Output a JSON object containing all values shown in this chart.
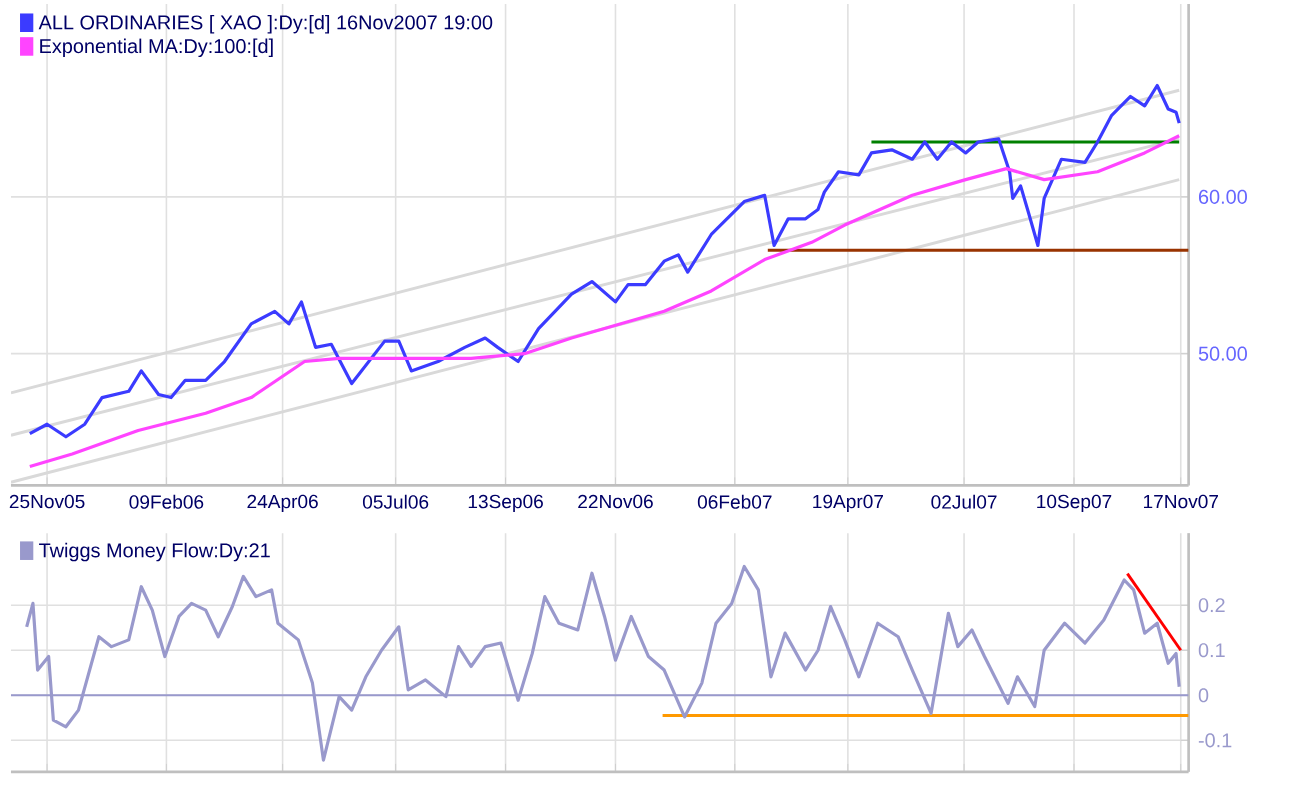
{
  "chart_data": [
    {
      "type": "line",
      "legend": "top left",
      "grid": true,
      "xlim": [
        "2005-11-02",
        "2007-11-22"
      ],
      "ylim": [
        41.6,
        72.3
      ],
      "xticks": [
        {
          "value": "2005-11-25",
          "label": "25Nov05"
        },
        {
          "value": "2006-02-09",
          "label": "09Feb06"
        },
        {
          "value": "2006-04-24",
          "label": "24Apr06"
        },
        {
          "value": "2006-07-05",
          "label": "05Jul06"
        },
        {
          "value": "2006-09-13",
          "label": "13Sep06"
        },
        {
          "value": "2006-11-22",
          "label": "22Nov06"
        },
        {
          "value": "2007-02-06",
          "label": "06Feb07"
        },
        {
          "value": "2007-04-19",
          "label": "19Apr07"
        },
        {
          "value": "2007-07-02",
          "label": "02Jul07"
        },
        {
          "value": "2007-09-10",
          "label": "10Sep07"
        },
        {
          "value": "2007-11-17",
          "label": "17Nov07"
        }
      ],
      "yticks": [
        {
          "value": 50,
          "label": "50.00"
        },
        {
          "value": 60,
          "label": "60.00"
        }
      ],
      "series": [
        {
          "color": "#d9d9d9",
          "x": [
            "2005-11-02",
            "2007-11-16"
          ],
          "values": [
            47.5,
            66.8
          ]
        },
        {
          "color": "#d9d9d9",
          "x": [
            "2005-11-02",
            "2007-11-16"
          ],
          "values": [
            44.8,
            63.7
          ]
        },
        {
          "color": "#d9d9d9",
          "x": [
            "2005-11-02",
            "2007-11-16"
          ],
          "values": [
            41.8,
            61.1
          ]
        },
        {
          "color": "#008000",
          "x": [
            "2007-05-04",
            "2007-11-16"
          ],
          "values": [
            63.5,
            63.5
          ]
        },
        {
          "color": "#993300",
          "x": [
            "2007-02-27",
            "2007-11-22"
          ],
          "values": [
            56.6,
            56.6
          ]
        },
        {
          "name": "ALL ORDINARIES [ XAO ]:Dy:[d]  16Nov2007 19:00",
          "color": "#3b3bff",
          "x": [
            "2005-11-14",
            "2005-11-25",
            "2005-12-07",
            "2005-12-19",
            "2005-12-30",
            "2006-01-16",
            "2006-01-24",
            "2006-02-04",
            "2006-02-12",
            "2006-02-21",
            "2006-03-06",
            "2006-03-18",
            "2006-04-04",
            "2006-04-19",
            "2006-04-28",
            "2006-05-06",
            "2006-05-15",
            "2006-05-25",
            "2006-06-07",
            "2006-06-28",
            "2006-07-07",
            "2006-07-15",
            "2006-08-01",
            "2006-08-18",
            "2006-08-31",
            "2006-09-08",
            "2006-09-21",
            "2006-10-04",
            "2006-10-25",
            "2006-11-07",
            "2006-11-22",
            "2006-11-30",
            "2006-12-11",
            "2006-12-23",
            "2007-01-01",
            "2007-01-07",
            "2007-01-22",
            "2007-02-12",
            "2007-02-25",
            "2007-03-03",
            "2007-03-12",
            "2007-03-23",
            "2007-03-31",
            "2007-04-04",
            "2007-04-13",
            "2007-04-26",
            "2007-05-04",
            "2007-05-17",
            "2007-05-30",
            "2007-06-07",
            "2007-06-15",
            "2007-06-24",
            "2007-07-03",
            "2007-07-11",
            "2007-07-24",
            "2007-07-31",
            "2007-08-02",
            "2007-08-07",
            "2007-08-12",
            "2007-08-18",
            "2007-08-22",
            "2007-09-02",
            "2007-09-17",
            "2007-09-25",
            "2007-10-04",
            "2007-10-16",
            "2007-10-25",
            "2007-11-02",
            "2007-11-09",
            "2007-11-14",
            "2007-11-16"
          ],
          "values": [
            44.9,
            45.5,
            44.7,
            45.5,
            47.2,
            47.6,
            48.9,
            47.4,
            47.2,
            48.3,
            48.3,
            49.5,
            51.9,
            52.7,
            51.9,
            53.3,
            50.4,
            50.6,
            48.1,
            50.8,
            50.8,
            48.9,
            49.5,
            50.4,
            51.0,
            50.4,
            49.5,
            51.6,
            53.8,
            54.6,
            53.3,
            54.4,
            54.4,
            55.9,
            56.3,
            55.2,
            57.6,
            59.7,
            60.1,
            56.9,
            58.6,
            58.6,
            59.2,
            60.3,
            61.6,
            61.4,
            62.8,
            63.0,
            62.4,
            63.5,
            62.4,
            63.5,
            62.8,
            63.5,
            63.7,
            61.6,
            59.9,
            60.7,
            59.0,
            56.9,
            59.9,
            62.4,
            62.2,
            63.5,
            65.2,
            66.4,
            65.8,
            67.1,
            65.6,
            65.4,
            64.7
          ]
        },
        {
          "name": "Exponential MA:Dy:100:[d]",
          "color": "#ff44ff",
          "x": [
            "2005-11-14",
            "2005-12-11",
            "2006-01-22",
            "2006-03-06",
            "2006-04-04",
            "2006-05-08",
            "2006-05-30",
            "2006-07-11",
            "2006-08-22",
            "2006-09-25",
            "2006-10-25",
            "2006-12-23",
            "2007-01-22",
            "2007-02-25",
            "2007-03-27",
            "2007-04-17",
            "2007-05-30",
            "2007-07-03",
            "2007-07-29",
            "2007-08-22",
            "2007-09-25",
            "2007-10-25",
            "2007-11-16"
          ],
          "values": [
            42.8,
            43.6,
            45.1,
            46.2,
            47.2,
            49.5,
            49.7,
            49.7,
            49.7,
            50.0,
            51.0,
            52.7,
            54.0,
            56.0,
            57.1,
            58.2,
            60.1,
            61.1,
            61.8,
            61.1,
            61.6,
            62.8,
            63.9
          ]
        }
      ]
    },
    {
      "type": "line",
      "legend": "top left",
      "grid": true,
      "tick_labels": "y",
      "xlim": [
        "2005-11-02",
        "2007-11-22"
      ],
      "ylim": [
        -0.17,
        0.36
      ],
      "xticks": [
        {
          "value": "2005-11-25",
          "label": null
        },
        {
          "value": "2006-02-09",
          "label": null
        },
        {
          "value": "2006-04-24",
          "label": null
        },
        {
          "value": "2006-07-05",
          "label": null
        },
        {
          "value": "2006-09-13",
          "label": null
        },
        {
          "value": "2006-11-22",
          "label": null
        },
        {
          "value": "2007-02-06",
          "label": null
        },
        {
          "value": "2007-04-19",
          "label": null
        },
        {
          "value": "2007-07-02",
          "label": null
        },
        {
          "value": "2007-09-10",
          "label": null
        },
        {
          "value": "2007-11-17",
          "label": null
        }
      ],
      "yticks": [
        -0.1,
        0,
        0.1,
        0.2
      ],
      "ref_lines": [
        {
          "axis": "y",
          "value": 0,
          "color": "#9999cc"
        }
      ],
      "series": [
        {
          "color": "#ff9900",
          "x": [
            "2006-12-22",
            "2007-11-22"
          ],
          "values": [
            -0.045,
            -0.045
          ]
        },
        {
          "name": "Twiggs Money Flow:Dy:21",
          "color": "#9999cc",
          "x": [
            "2005-11-12",
            "2005-11-16",
            "2005-11-19",
            "2005-11-26",
            "2005-11-29",
            "2005-12-07",
            "2005-12-15",
            "2005-12-28",
            "2006-01-05",
            "2006-01-16",
            "2006-01-24",
            "2006-01-31",
            "2006-02-08",
            "2006-02-17",
            "2006-02-25",
            "2006-03-06",
            "2006-03-14",
            "2006-03-23",
            "2006-03-30",
            "2006-04-07",
            "2006-04-17",
            "2006-04-21",
            "2006-05-04",
            "2006-05-13",
            "2006-05-20",
            "2006-05-30",
            "2006-06-07",
            "2006-06-16",
            "2006-06-26",
            "2006-07-07",
            "2006-07-13",
            "2006-07-24",
            "2006-08-06",
            "2006-08-14",
            "2006-08-22",
            "2006-08-31",
            "2006-09-10",
            "2006-09-21",
            "2006-09-30",
            "2006-10-08",
            "2006-10-17",
            "2006-10-29",
            "2006-11-07",
            "2006-11-15",
            "2006-11-22",
            "2006-12-02",
            "2006-12-13",
            "2006-12-23",
            "2007-01-05",
            "2007-01-16",
            "2007-01-25",
            "2007-02-04",
            "2007-02-12",
            "2007-02-21",
            "2007-03-01",
            "2007-03-10",
            "2007-03-23",
            "2007-03-31",
            "2007-04-08",
            "2007-04-17",
            "2007-04-26",
            "2007-05-08",
            "2007-05-21",
            "2007-05-30",
            "2007-06-11",
            "2007-06-22",
            "2007-06-28",
            "2007-07-07",
            "2007-07-15",
            "2007-07-30",
            "2007-08-05",
            "2007-08-16",
            "2007-08-22",
            "2007-09-04",
            "2007-09-17",
            "2007-09-29",
            "2007-10-12",
            "2007-10-18",
            "2007-10-25",
            "2007-11-02",
            "2007-11-09",
            "2007-11-14",
            "2007-11-16"
          ],
          "values": [
            0.152,
            0.204,
            0.056,
            0.086,
            -0.055,
            -0.07,
            -0.033,
            0.13,
            0.108,
            0.123,
            0.241,
            0.189,
            0.086,
            0.175,
            0.204,
            0.189,
            0.13,
            0.197,
            0.264,
            0.219,
            0.234,
            0.16,
            0.123,
            0.027,
            -0.144,
            -0.003,
            -0.033,
            0.041,
            0.1,
            0.152,
            0.012,
            0.034,
            -0.003,
            0.108,
            0.064,
            0.108,
            0.116,
            -0.011,
            0.093,
            0.219,
            0.16,
            0.145,
            0.271,
            0.175,
            0.078,
            0.175,
            0.086,
            0.056,
            -0.048,
            0.027,
            0.16,
            0.204,
            0.286,
            0.234,
            0.041,
            0.138,
            0.056,
            0.1,
            0.197,
            0.123,
            0.041,
            0.16,
            0.13,
            0.056,
            -0.04,
            0.182,
            0.108,
            0.145,
            0.086,
            -0.018,
            0.041,
            -0.025,
            0.1,
            0.16,
            0.116,
            0.167,
            0.256,
            0.234,
            0.138,
            0.16,
            0.071,
            0.093,
            0.019
          ]
        },
        {
          "color": "#ff0000",
          "x": [
            "2007-10-14",
            "2007-11-17"
          ],
          "values": [
            0.27,
            0.1
          ]
        }
      ]
    }
  ]
}
